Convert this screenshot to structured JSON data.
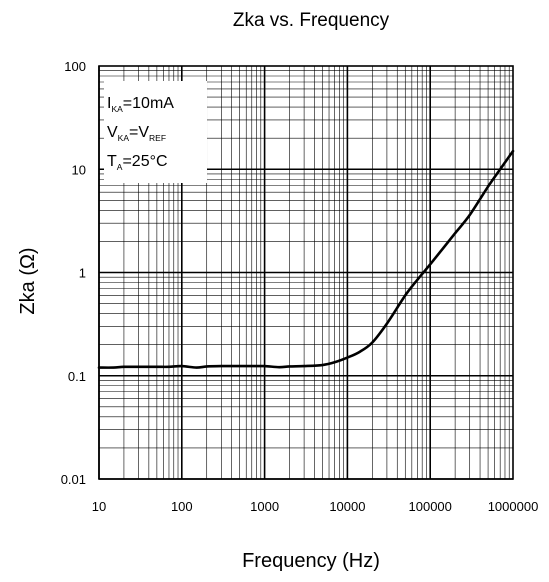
{
  "chart_data": {
    "type": "line",
    "title": "Zka vs. Frequency",
    "xlabel": "Frequency (Hz)",
    "ylabel": "Zka (Ω)",
    "xscale": "log",
    "yscale": "log",
    "xlim": [
      10,
      1000000
    ],
    "ylim": [
      0.01,
      100
    ],
    "grid": true,
    "x_ticks": [
      "10",
      "100",
      "1000",
      "10000",
      "100000",
      "1000000"
    ],
    "y_ticks": [
      "0.01",
      "0.1",
      "1",
      "10",
      "100"
    ],
    "annotation": {
      "lines": [
        [
          {
            "t": "I"
          },
          {
            "t": "KA",
            "sub": true
          },
          {
            "t": "=10mA"
          }
        ],
        [
          {
            "t": "V"
          },
          {
            "t": "KA",
            "sub": true
          },
          {
            "t": "=V"
          },
          {
            "t": "REF",
            "sub": true
          }
        ],
        [
          {
            "t": "T"
          },
          {
            "t": "A",
            "sub": true
          },
          {
            "t": "=25°C"
          }
        ]
      ],
      "placement": "top-left"
    },
    "series": [
      {
        "x": [
          10,
          15,
          20,
          30,
          50,
          70,
          100,
          150,
          200,
          300,
          500,
          700,
          1000,
          1500,
          2000,
          3000,
          5000,
          7000,
          10000,
          14000,
          20000,
          30000,
          50000,
          70000,
          100000,
          150000,
          200000,
          300000,
          500000,
          700000,
          1000000
        ],
        "y": [
          0.12,
          0.12,
          0.122,
          0.122,
          0.122,
          0.122,
          0.124,
          0.12,
          0.123,
          0.124,
          0.124,
          0.124,
          0.124,
          0.121,
          0.123,
          0.124,
          0.127,
          0.135,
          0.15,
          0.17,
          0.21,
          0.32,
          0.6,
          0.85,
          1.2,
          1.8,
          2.4,
          3.6,
          6.8,
          10,
          15
        ]
      }
    ]
  }
}
